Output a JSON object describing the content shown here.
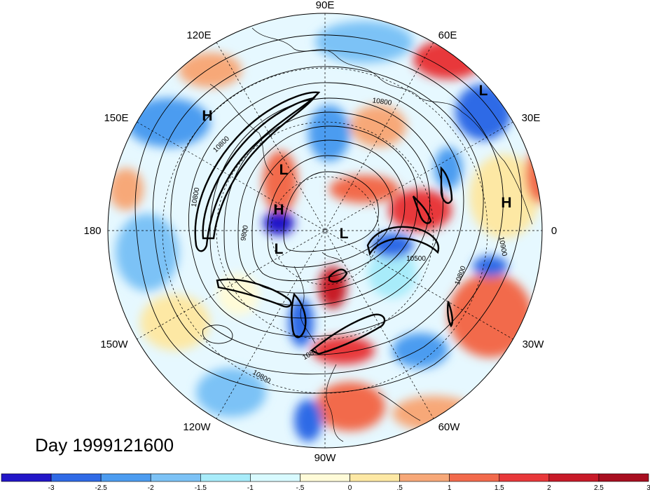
{
  "title": "Day 1999121600",
  "longitude_labels": {
    "lon_90E": "90E",
    "lon_120E": "120E",
    "lon_60E": "60E",
    "lon_150E": "150E",
    "lon_30E": "30E",
    "lon_180": "180",
    "lon_0": "0",
    "lon_150W": "150W",
    "lon_30W": "30W",
    "lon_120W": "120W",
    "lon_60W": "60W",
    "lon_90W": "90W"
  },
  "pressure_centers": [
    {
      "type": "H",
      "label": "H"
    },
    {
      "type": "L",
      "label": "L"
    },
    {
      "type": "L",
      "label": "L"
    },
    {
      "type": "H",
      "label": "H"
    },
    {
      "type": "L",
      "label": "L"
    },
    {
      "type": "L",
      "label": "L"
    },
    {
      "type": "H",
      "label": "H"
    }
  ],
  "contour_labels": [
    "10800",
    "10800",
    "9800",
    "10500",
    "10800",
    "10900",
    "10800",
    "10800",
    "1080"
  ],
  "colorbar": {
    "colors": [
      "#2216c8",
      "#2f6ae6",
      "#4c9cf0",
      "#7cc2f6",
      "#a8ecfa",
      "#d8faff",
      "#fffbd8",
      "#fde8a4",
      "#f7a878",
      "#f26a4c",
      "#e8383a",
      "#c81a28",
      "#a80e20"
    ],
    "labels": [
      "-3",
      "-2.5",
      "-2",
      "-1.5",
      "-1",
      "-.5",
      "0",
      ".5",
      "1",
      "1.5",
      "2",
      "2.5",
      "3"
    ]
  }
}
